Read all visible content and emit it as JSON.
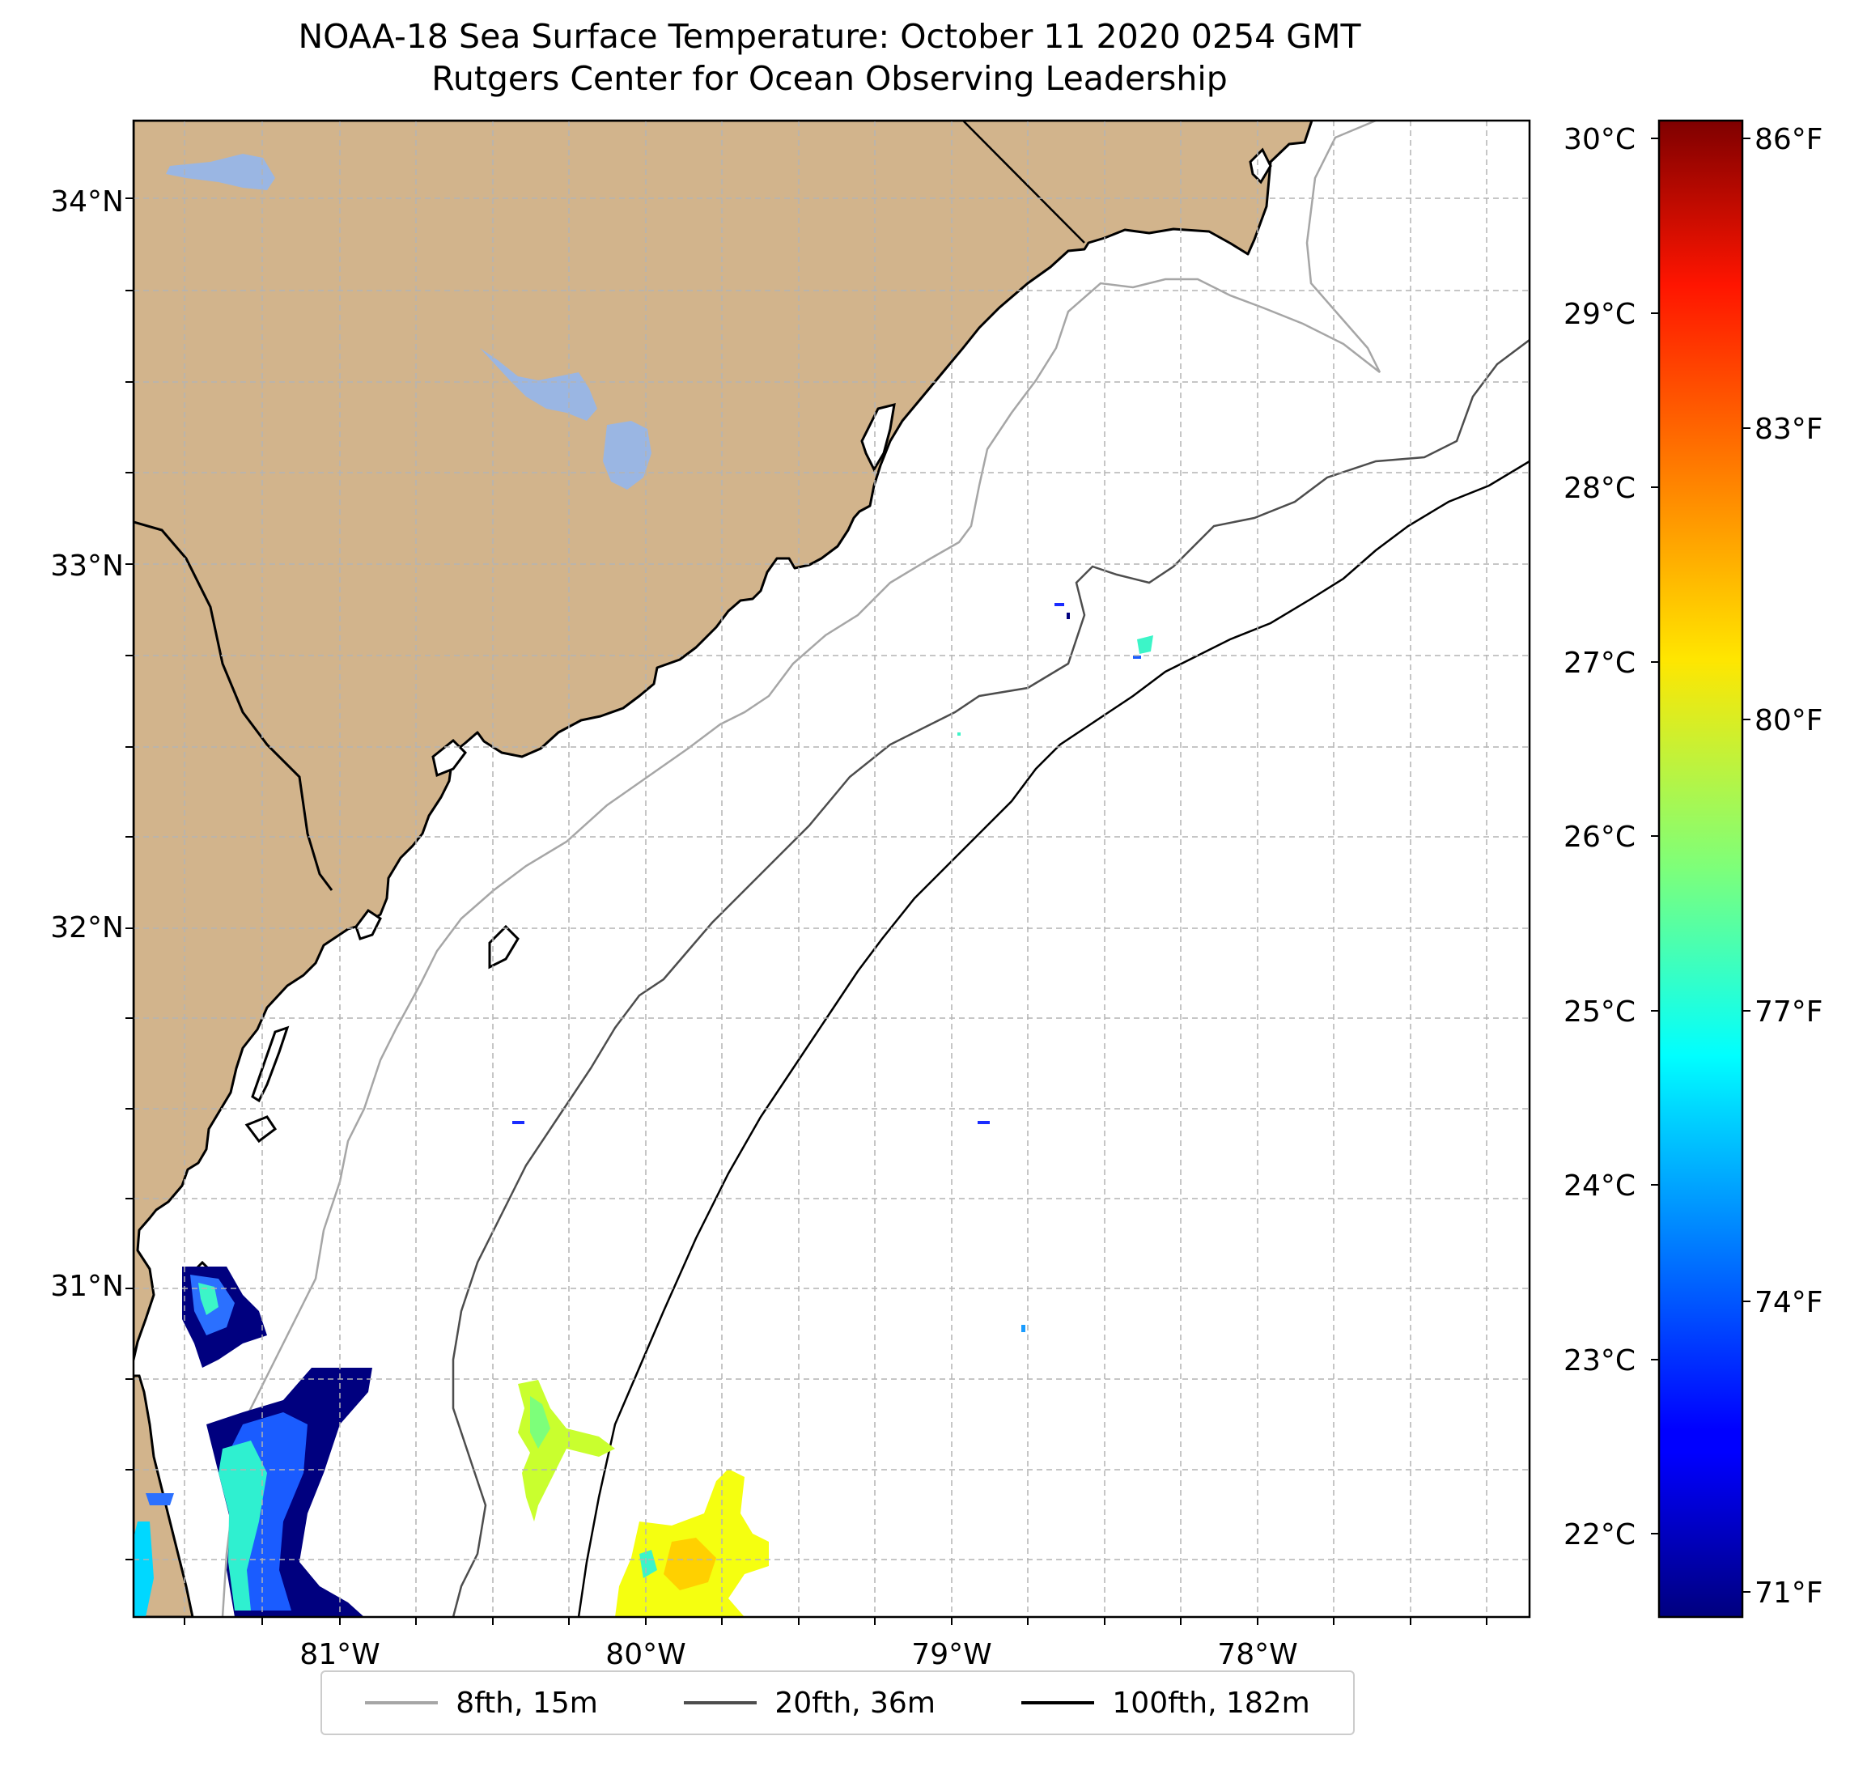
{
  "title": "NOAA-18 Sea Surface Temperature: October 11 2020 0254 GMT",
  "subtitle": "Rutgers Center for Ocean Observing Leadership",
  "map": {
    "lon_range": [
      -81.68,
      -77.13
    ],
    "lat_range": [
      30.08,
      34.22
    ],
    "land_color": "#d2b48c",
    "lake_color": "#9ab6e3",
    "grid": "dashed",
    "lon_labels": [
      "81°W",
      "80°W",
      "79°W",
      "78°W"
    ],
    "lat_labels": [
      "34°N",
      "33°N",
      "32°N",
      "31°N"
    ]
  },
  "colorbar": {
    "colormap": "jet",
    "range_c": [
      21.6,
      30.2
    ],
    "celsius_labels": [
      "30°C",
      "29°C",
      "28°C",
      "27°C",
      "26°C",
      "25°C",
      "24°C",
      "23°C",
      "22°C"
    ],
    "fahrenheit_labels": [
      "86°F",
      "83°F",
      "80°F",
      "77°F",
      "74°F",
      "71°F"
    ]
  },
  "legend": {
    "items": [
      {
        "label": "8fth, 15m",
        "color": "#a6a6a6"
      },
      {
        "label": "20fth, 36m",
        "color": "#4d4d4d"
      },
      {
        "label": "100fth, 182m",
        "color": "#000000"
      }
    ]
  }
}
